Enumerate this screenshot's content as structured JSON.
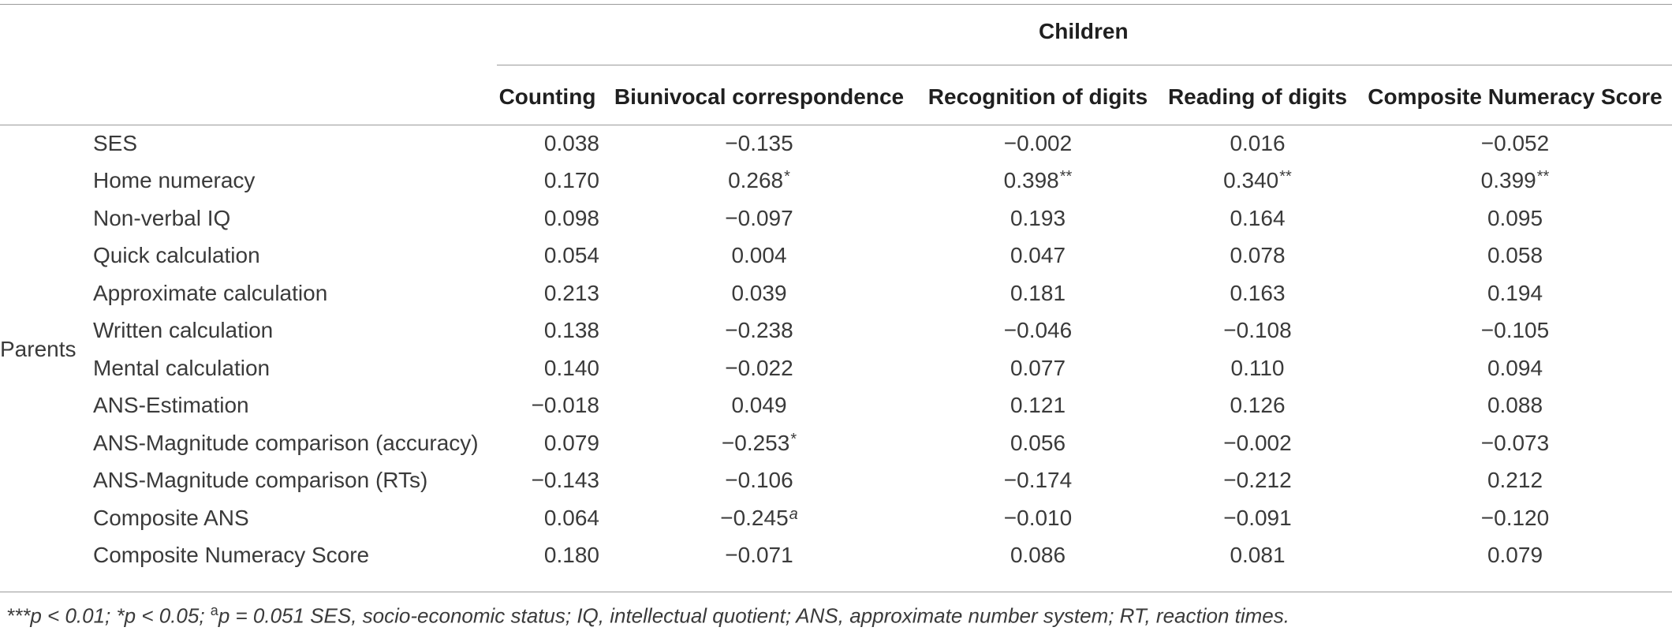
{
  "table": {
    "group_header": "Children",
    "row_group_label": "Parents",
    "columns": [
      "Counting",
      "Biunivocal correspondence",
      "Recognition of digits",
      "Reading of digits",
      "Composite Numeracy Score"
    ],
    "rows": [
      {
        "label": "SES",
        "values": [
          "0.038",
          "−0.135",
          "−0.002",
          "0.016",
          "−0.052"
        ],
        "marks": [
          "",
          "",
          "",
          "",
          ""
        ]
      },
      {
        "label": "Home numeracy",
        "values": [
          "0.170",
          "0.268",
          "0.398",
          "0.340",
          "0.399"
        ],
        "marks": [
          "",
          "*",
          "**",
          "**",
          "**"
        ]
      },
      {
        "label": "Non-verbal IQ",
        "values": [
          "0.098",
          "−0.097",
          "0.193",
          "0.164",
          "0.095"
        ],
        "marks": [
          "",
          "",
          "",
          "",
          ""
        ]
      },
      {
        "label": "Quick calculation",
        "values": [
          "0.054",
          "0.004",
          "0.047",
          "0.078",
          "0.058"
        ],
        "marks": [
          "",
          "",
          "",
          "",
          ""
        ]
      },
      {
        "label": "Approximate calculation",
        "values": [
          "0.213",
          "0.039",
          "0.181",
          "0.163",
          "0.194"
        ],
        "marks": [
          "",
          "",
          "",
          "",
          ""
        ]
      },
      {
        "label": "Written calculation",
        "values": [
          "0.138",
          "−0.238",
          "−0.046",
          "−0.108",
          "−0.105"
        ],
        "marks": [
          "",
          "",
          "",
          "",
          ""
        ]
      },
      {
        "label": "Mental calculation",
        "values": [
          "0.140",
          "−0.022",
          "0.077",
          "0.110",
          "0.094"
        ],
        "marks": [
          "",
          "",
          "",
          "",
          ""
        ]
      },
      {
        "label": "ANS-Estimation",
        "values": [
          "−0.018",
          "0.049",
          "0.121",
          "0.126",
          "0.088"
        ],
        "marks": [
          "",
          "",
          "",
          "",
          ""
        ]
      },
      {
        "label": "ANS-Magnitude comparison (accuracy)",
        "values": [
          "0.079",
          "−0.253",
          "0.056",
          "−0.002",
          "−0.073"
        ],
        "marks": [
          "",
          "*",
          "",
          "",
          ""
        ]
      },
      {
        "label": "ANS-Magnitude comparison (RTs)",
        "values": [
          "−0.143",
          "−0.106",
          "−0.174",
          "−0.212",
          "0.212"
        ],
        "marks": [
          "",
          "",
          "",
          "",
          ""
        ]
      },
      {
        "label": "Composite ANS",
        "values": [
          "0.064",
          "−0.245",
          "−0.010",
          "−0.091",
          "−0.120"
        ],
        "marks": [
          "",
          "a",
          "",
          "",
          ""
        ]
      },
      {
        "label": "Composite Numeracy Score",
        "values": [
          "0.180",
          "−0.071",
          "0.086",
          "0.081",
          "0.079"
        ],
        "marks": [
          "",
          "",
          "",
          "",
          ""
        ]
      }
    ]
  },
  "footnote": {
    "sig_high": "***",
    "sig_high_text": "p < 0.01; ",
    "sig_low": "*",
    "sig_low_text": "p < 0.05; ",
    "sig_a": "a",
    "sig_a_text": "p = 0.051 SES, socio-economic status; IQ, intellectual quotient; ANS, approximate number system; RT, reaction times."
  }
}
